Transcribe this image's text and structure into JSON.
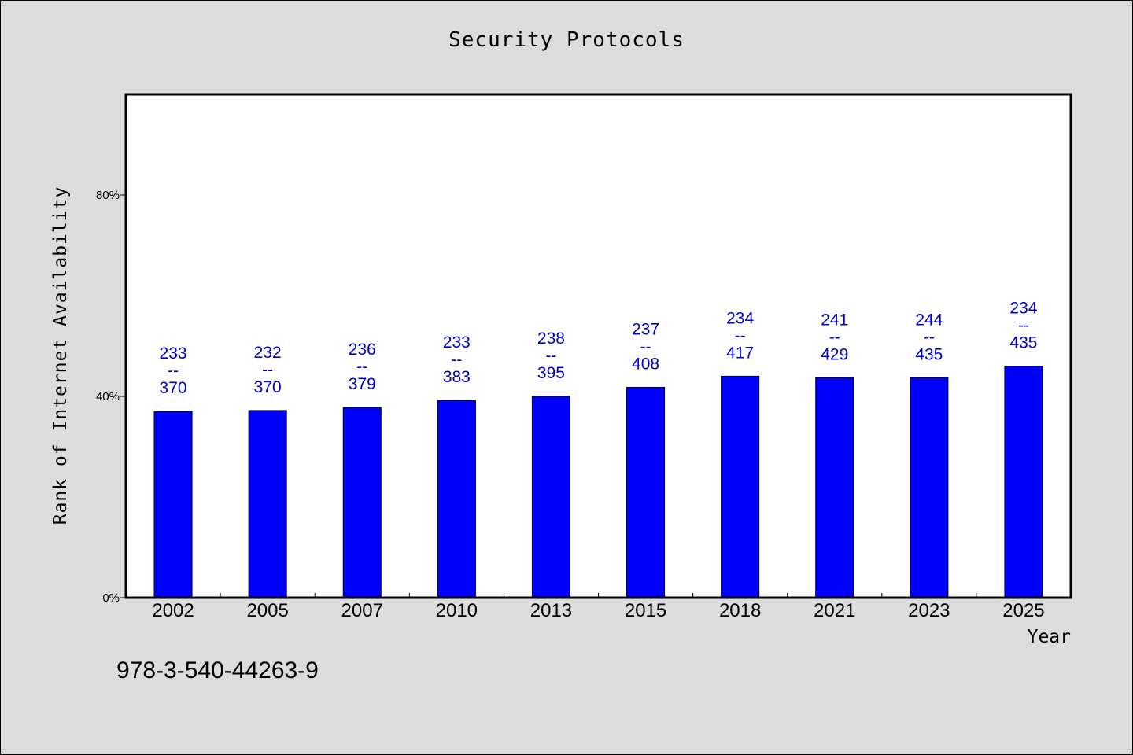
{
  "chart_data": {
    "type": "bar",
    "title": "Security Protocols",
    "xlabel": "Year",
    "ylabel": "Rank of Internet Availability",
    "categories": [
      "2002",
      "2005",
      "2007",
      "2010",
      "2013",
      "2015",
      "2018",
      "2021",
      "2023",
      "2025"
    ],
    "values": [
      37,
      37.2,
      37.8,
      39.2,
      40,
      41.8,
      44,
      43.7,
      43.7,
      46
    ],
    "labels_top": [
      "233",
      "232",
      "236",
      "233",
      "238",
      "237",
      "234",
      "241",
      "244",
      "234"
    ],
    "labels_bottom": [
      "370",
      "370",
      "379",
      "383",
      "395",
      "408",
      "417",
      "429",
      "435",
      "435"
    ],
    "label_separator": "--",
    "ylim": [
      0,
      100
    ],
    "yticks": [
      {
        "value": 0,
        "label": "0%"
      },
      {
        "value": 40,
        "label": "40%"
      },
      {
        "value": 80,
        "label": "80%"
      }
    ],
    "grid": false,
    "bar_color": "#0000ff",
    "label_color": "#0000cc",
    "plot_background": "#ffffff",
    "page_background": "#dcdcdc"
  },
  "footer": {
    "code": "978-3-540-44263-9"
  }
}
